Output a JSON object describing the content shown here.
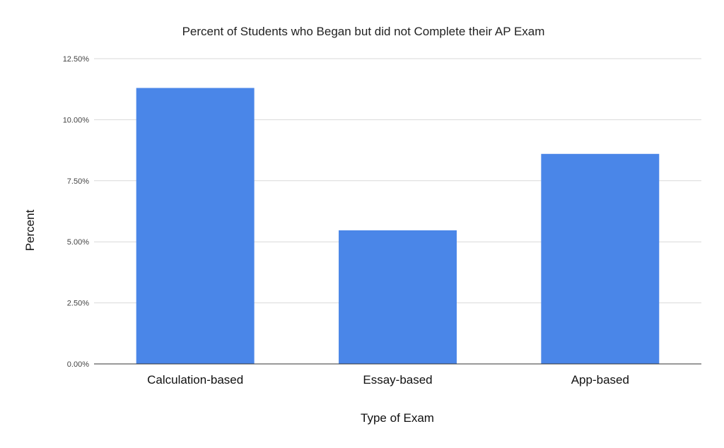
{
  "chart_data": {
    "type": "bar",
    "title": "Percent of Students who Began but did not Complete their AP Exam",
    "xlabel": "Type of Exam",
    "ylabel": "Percent",
    "categories": [
      "Calculation-based",
      "Essay-based",
      "App-based"
    ],
    "values": [
      11.3,
      5.47,
      8.6
    ],
    "ylim": [
      0,
      12.5
    ],
    "yticks": [
      "0.00%",
      "2.50%",
      "5.00%",
      "7.50%",
      "10.00%",
      "12.50%"
    ],
    "ytick_values": [
      0,
      2.5,
      5,
      7.5,
      10,
      12.5
    ],
    "bar_color": "#4a86e8",
    "grid": true,
    "legend": "none"
  }
}
